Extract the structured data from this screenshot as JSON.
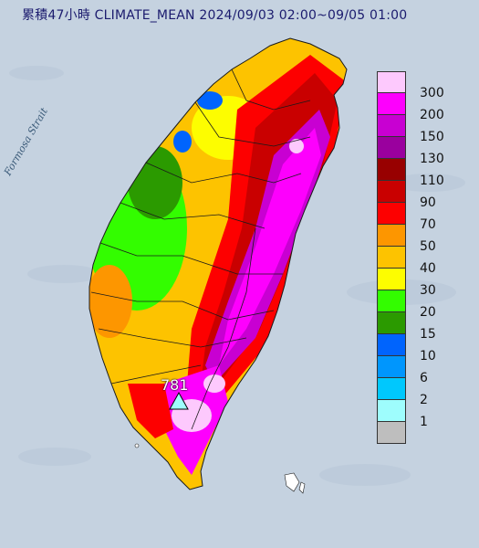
{
  "header": {
    "title": "累積47小時 CLIMATE_MEAN 2024/09/03 02:00~09/05 01:00"
  },
  "map": {
    "sea_label": "Formosa Strait",
    "station_peak": {
      "value": "781",
      "marker_icon": "triangle-station-icon"
    }
  },
  "legend": {
    "labels": [
      "300",
      "200",
      "150",
      "130",
      "110",
      "90",
      "70",
      "50",
      "40",
      "30",
      "20",
      "15",
      "10",
      "6",
      "2",
      "1"
    ],
    "colors": [
      "#fdc9fd",
      "#fd00fd",
      "#c800d2",
      "#9a009e",
      "#980000",
      "#c90000",
      "#fd0000",
      "#fd9600",
      "#fdc300",
      "#fdfd00",
      "#33fd00",
      "#2b9a00",
      "#0064fd",
      "#0096fd",
      "#00c8fd",
      "#9efdfd",
      "#bebebe"
    ]
  },
  "colors": {
    "sea": "#c5d2e0",
    "title_text": "#1b1b6e",
    "county_border": "#1a1a1a"
  }
}
